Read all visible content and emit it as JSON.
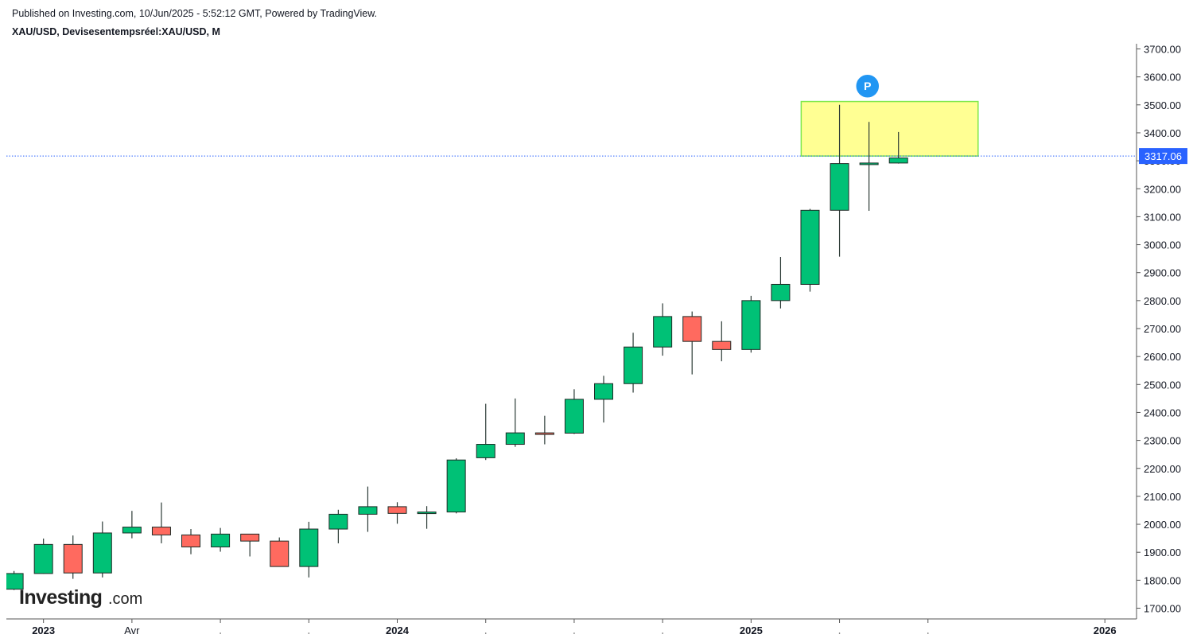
{
  "header": {
    "published": "Published on Investing.com, 10/Jun/2025 - 5:52:12 GMT, Powered by TradingView.",
    "symbol": "XAU/USD, Devisesentempsréel:XAU/USD, M"
  },
  "logo": {
    "brand": "Investing",
    "suffix": ".com"
  },
  "colors": {
    "up": "#00c176",
    "down": "#ff6a5f",
    "wick": "#2b3a35",
    "price_line": "#2962ff",
    "zone": "#ffff80",
    "zone_border": "#7de84a",
    "marker": "#2196f3"
  },
  "chart_data": {
    "type": "candlestick",
    "ylim": [
      1650,
      3720
    ],
    "y_ticks": [
      "1700.00",
      "1800.00",
      "1900.00",
      "2000.00",
      "2100.00",
      "2200.00",
      "2300.00",
      "2400.00",
      "2500.00",
      "2600.00",
      "2700.00",
      "2800.00",
      "2900.00",
      "3000.00",
      "3100.00",
      "3200.00",
      "3300.00",
      "3400.00",
      "3500.00",
      "3600.00",
      "3700.00"
    ],
    "x_labels": [
      {
        "label": "2023",
        "index": 0,
        "bold": true
      },
      {
        "label": "Avr",
        "index": 3,
        "bold": false
      },
      {
        "label": "2024",
        "index": 12,
        "bold": true
      },
      {
        "label": "2025",
        "index": 24,
        "bold": true
      },
      {
        "label": "2026",
        "index": 36,
        "bold": true
      }
    ],
    "minor_ticks": [
      6,
      9,
      15,
      18,
      21,
      27,
      30
    ],
    "current_price": "3317.06",
    "candles": [
      {
        "date": "2022-12",
        "o": 1768,
        "h": 1833,
        "l": 1765,
        "c": 1824
      },
      {
        "date": "2023-01",
        "o": 1824,
        "h": 1949,
        "l": 1823,
        "c": 1928
      },
      {
        "date": "2023-02",
        "o": 1928,
        "h": 1960,
        "l": 1805,
        "c": 1826
      },
      {
        "date": "2023-03",
        "o": 1826,
        "h": 2010,
        "l": 1810,
        "c": 1969
      },
      {
        "date": "2023-04",
        "o": 1969,
        "h": 2048,
        "l": 1950,
        "c": 1990
      },
      {
        "date": "2023-05",
        "o": 1990,
        "h": 2078,
        "l": 1932,
        "c": 1962
      },
      {
        "date": "2023-06",
        "o": 1962,
        "h": 1983,
        "l": 1893,
        "c": 1919
      },
      {
        "date": "2023-07",
        "o": 1919,
        "h": 1987,
        "l": 1902,
        "c": 1965
      },
      {
        "date": "2023-08",
        "o": 1965,
        "h": 1966,
        "l": 1885,
        "c": 1940
      },
      {
        "date": "2023-09",
        "o": 1940,
        "h": 1953,
        "l": 1848,
        "c": 1849
      },
      {
        "date": "2023-10",
        "o": 1849,
        "h": 2009,
        "l": 1810,
        "c": 1983
      },
      {
        "date": "2023-11",
        "o": 1983,
        "h": 2052,
        "l": 1932,
        "c": 2036
      },
      {
        "date": "2023-12",
        "o": 2036,
        "h": 2135,
        "l": 1973,
        "c": 2063
      },
      {
        "date": "2024-01",
        "o": 2063,
        "h": 2079,
        "l": 2002,
        "c": 2039
      },
      {
        "date": "2024-02",
        "o": 2039,
        "h": 2065,
        "l": 1984,
        "c": 2044
      },
      {
        "date": "2024-03",
        "o": 2044,
        "h": 2236,
        "l": 2039,
        "c": 2230
      },
      {
        "date": "2024-04",
        "o": 2238,
        "h": 2431,
        "l": 2230,
        "c": 2286
      },
      {
        "date": "2024-05",
        "o": 2286,
        "h": 2450,
        "l": 2277,
        "c": 2327
      },
      {
        "date": "2024-06",
        "o": 2327,
        "h": 2388,
        "l": 2286,
        "c": 2326
      },
      {
        "date": "2024-07",
        "o": 2326,
        "h": 2483,
        "l": 2323,
        "c": 2447
      },
      {
        "date": "2024-08",
        "o": 2447,
        "h": 2531,
        "l": 2364,
        "c": 2503
      },
      {
        "date": "2024-09",
        "o": 2503,
        "h": 2685,
        "l": 2471,
        "c": 2634
      },
      {
        "date": "2024-10",
        "o": 2634,
        "h": 2790,
        "l": 2603,
        "c": 2743
      },
      {
        "date": "2024-11",
        "o": 2743,
        "h": 2761,
        "l": 2536,
        "c": 2654
      },
      {
        "date": "2024-12",
        "o": 2654,
        "h": 2726,
        "l": 2583,
        "c": 2625
      },
      {
        "date": "2025-01",
        "o": 2625,
        "h": 2817,
        "l": 2614,
        "c": 2800
      },
      {
        "date": "2025-02",
        "o": 2800,
        "h": 2956,
        "l": 2772,
        "c": 2858
      },
      {
        "date": "2025-03",
        "o": 2858,
        "h": 3128,
        "l": 2832,
        "c": 3123
      },
      {
        "date": "2025-04",
        "o": 3123,
        "h": 3500,
        "l": 2957,
        "c": 3290
      },
      {
        "date": "2025-05",
        "o": 3290,
        "h": 3439,
        "l": 3121,
        "c": 3292
      },
      {
        "date": "2025-06",
        "o": 3292,
        "h": 3403,
        "l": 3290,
        "c": 3310
      }
    ],
    "annotations": [
      {
        "type": "rectangle",
        "x_start": 26.7,
        "x_end": 32.7,
        "y_low": 3317,
        "y_high": 3512
      },
      {
        "type": "marker",
        "label": "P",
        "x": 28.95,
        "y": 3567
      }
    ]
  }
}
